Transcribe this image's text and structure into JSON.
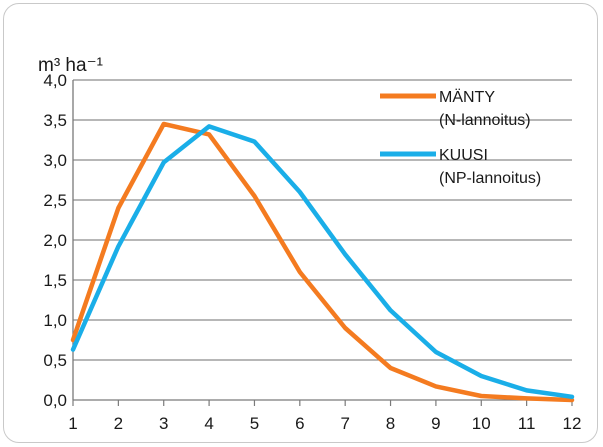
{
  "chart_data": {
    "type": "line",
    "title": "",
    "ylabel": "m³ ha⁻¹",
    "xlabel": "",
    "x": [
      1,
      2,
      3,
      4,
      5,
      6,
      7,
      8,
      9,
      10,
      11,
      12
    ],
    "ylim": [
      0,
      4.0
    ],
    "yticks": [
      "0,0",
      "0,5",
      "1,0",
      "1,5",
      "2,0",
      "2,5",
      "3,0",
      "3,5",
      "4,0"
    ],
    "xticks": [
      "1",
      "2",
      "3",
      "4",
      "5",
      "6",
      "7",
      "8",
      "9",
      "10",
      "11",
      "12"
    ],
    "grid": true,
    "legend_position": "top-right",
    "series": [
      {
        "name": "MÄNTY",
        "name_line2": "(N-lannoitus)",
        "color": "#f47b20",
        "values": [
          0.75,
          2.4,
          3.45,
          3.32,
          2.55,
          1.6,
          0.9,
          0.4,
          0.17,
          0.05,
          0.02,
          0.0
        ]
      },
      {
        "name": "KUUSI",
        "name_line2": "(NP-lannoitus)",
        "color": "#1aaee8",
        "values": [
          0.63,
          1.92,
          2.97,
          3.42,
          3.23,
          2.6,
          1.82,
          1.12,
          0.6,
          0.3,
          0.12,
          0.04
        ]
      }
    ]
  }
}
